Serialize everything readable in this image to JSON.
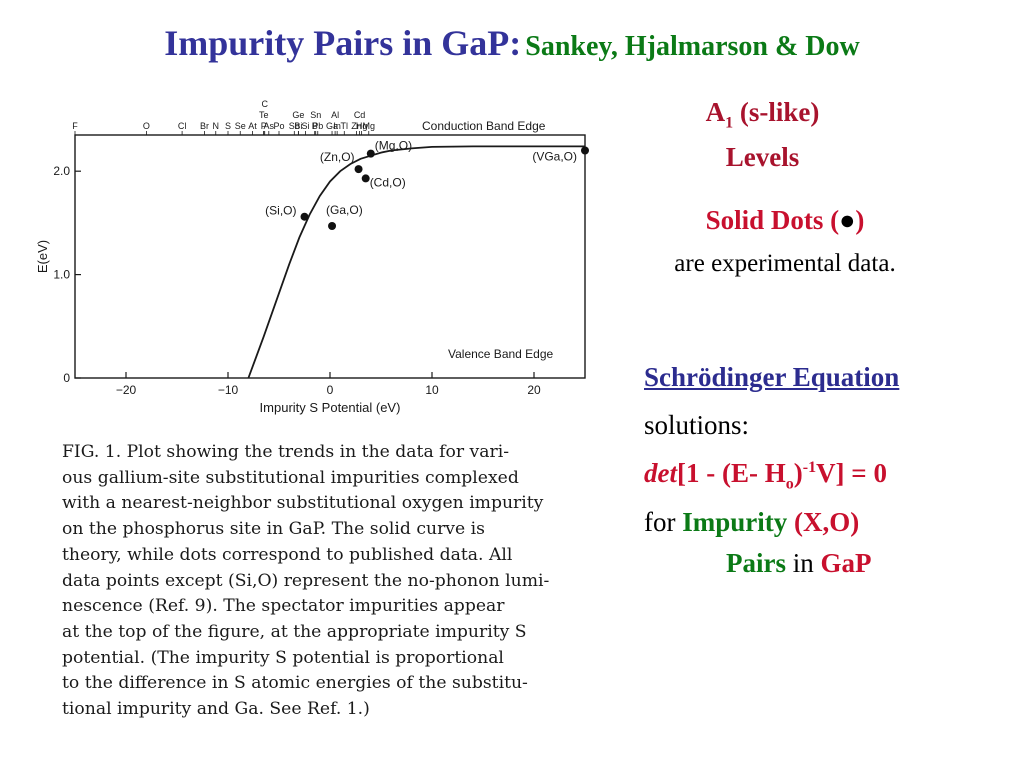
{
  "title": {
    "main": "Impurity Pairs in GaP:",
    "sub": "Sankey, Hjalmarson & Dow"
  },
  "chart_data": {
    "type": "line",
    "xlabel": "Impurity S Potential (eV)",
    "ylabel": "E(eV)",
    "xlim": [
      -25,
      25
    ],
    "ylim": [
      0,
      2.35
    ],
    "x_ticks": [
      -20,
      -10,
      0,
      10,
      20
    ],
    "y_ticks": [
      0,
      1.0,
      2.0
    ],
    "x_tick_labels": [
      "−20",
      "−10",
      "0",
      "10",
      "20"
    ],
    "y_tick_labels": [
      "0",
      "1.0",
      "2.0"
    ],
    "band_labels": {
      "conduction": "Conduction Band Edge",
      "valence": "Valence Band Edge"
    },
    "conduction_band_edge": 2.24,
    "theory_curve": {
      "x": [
        -8.0,
        -6.5,
        -5.0,
        -4.0,
        -3.0,
        -2.0,
        -1.0,
        0.0,
        1.0,
        2.0,
        3.0,
        4.0,
        5.0,
        6.0,
        8.0,
        10.0,
        14.0,
        20.0,
        25.0
      ],
      "y": [
        0.0,
        0.4,
        0.82,
        1.1,
        1.36,
        1.58,
        1.76,
        1.9,
        2.0,
        2.07,
        2.12,
        2.15,
        2.18,
        2.2,
        2.22,
        2.235,
        2.24,
        2.24,
        2.24
      ]
    },
    "data_points": [
      {
        "label": "(Si,O)",
        "x": -2.5,
        "y": 1.56
      },
      {
        "label": "(Ga,O)",
        "x": 0.2,
        "y": 1.47
      },
      {
        "label": "(Zn,O)",
        "x": 2.8,
        "y": 2.02
      },
      {
        "label": "(Cd,O)",
        "x": 3.5,
        "y": 1.93
      },
      {
        "label": "(Mg,O)",
        "x": 4.0,
        "y": 2.17
      },
      {
        "label": "(VGa,O)",
        "x": 25.0,
        "y": 2.2
      }
    ],
    "spectator_impurities": [
      {
        "label": "F",
        "x": -25.0
      },
      {
        "label": "O",
        "x": -18.0
      },
      {
        "label": "Cl",
        "x": -14.5
      },
      {
        "label": "Br",
        "x": -12.3
      },
      {
        "label": "N",
        "x": -11.2
      },
      {
        "label": "S",
        "x": -10.0
      },
      {
        "label": "Se",
        "x": -8.8
      },
      {
        "label": "As",
        "x": -6.0
      },
      {
        "label": "P",
        "x": -6.5
      },
      {
        "label": "Te",
        "x": -6.5
      },
      {
        "label": "At",
        "x": -7.6
      },
      {
        "label": "C",
        "x": -6.4
      },
      {
        "label": "Po",
        "x": -5.0
      },
      {
        "label": "Sb",
        "x": -3.5
      },
      {
        "label": "Si",
        "x": -2.4
      },
      {
        "label": "Bi",
        "x": -3.1
      },
      {
        "label": "Ge",
        "x": -3.1
      },
      {
        "label": "Pb",
        "x": -1.2
      },
      {
        "label": "Sn",
        "x": -1.4
      },
      {
        "label": "B",
        "x": -1.5
      },
      {
        "label": "Tl",
        "x": 1.4
      },
      {
        "label": "In",
        "x": 0.7
      },
      {
        "label": "Al",
        "x": 0.5
      },
      {
        "label": "Ga",
        "x": 0.2
      },
      {
        "label": "Mg",
        "x": 3.8
      },
      {
        "label": "Hg",
        "x": 3.1
      },
      {
        "label": "Cd",
        "x": 2.9
      },
      {
        "label": "Zn",
        "x": 2.6
      }
    ]
  },
  "caption": [
    "FIG. 1.  Plot showing the trends in the data for vari-",
    "ous gallium-site substitutional impurities complexed",
    "with a nearest-neighbor substitutional oxygen impurity",
    "on the phosphorus site in GaP.  The solid curve is",
    "theory, while dots correspond to published data.  All",
    "data points except (Si,O) represent the no-phonon lumi-",
    "nescence (Ref. 9).  The spectator impurities appear",
    "at the top of the figure, at the appropriate impurity S",
    "potential.  (The impurity S potential is proportional",
    "to the difference in S atomic energies of the substitu-",
    "tional impurity and Ga.  See Ref. 1.)"
  ],
  "notes": {
    "a1_letter": "A",
    "a1_sub": "1",
    "a1_rest": " (s-like)",
    "levels": "Levels",
    "solid_dots": "Solid Dots (",
    "dot_symbol": "●",
    "close_paren": ")",
    "experimental": "are experimental data.",
    "equation_title": "Schrödinger Equation",
    "solutions": "solutions:",
    "det": "det",
    "eq_part1": "[1 - (E- H",
    "eq_sub_o": "o",
    "eq_part2": ")",
    "eq_sup": "-1",
    "eq_part3": "V] = 0",
    "for": "for ",
    "impurity": "Impurity",
    "xo": " (X,O)",
    "pairs": "Pairs",
    "in": " in ",
    "gap": "GaP"
  },
  "colors": {
    "title_main": "#33339a",
    "title_sub": "#0b7a16",
    "red": "#c8102e",
    "green": "#0b7a16",
    "blue": "#2c2c8f"
  }
}
